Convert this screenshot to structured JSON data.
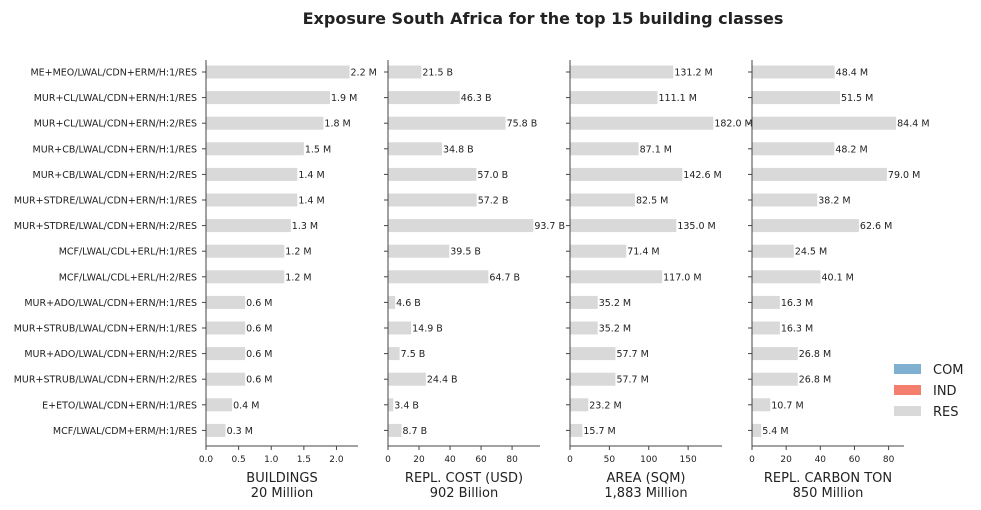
{
  "chart_data": {
    "type": "bar",
    "orientation": "horizontal",
    "title": "Exposure South Africa for the top 15 building classes",
    "categories": [
      "ME+MEO/LWAL/CDN+ERM/H:1/RES",
      "MUR+CL/LWAL/CDN+ERN/H:1/RES",
      "MUR+CL/LWAL/CDN+ERN/H:2/RES",
      "MUR+CB/LWAL/CDN+ERN/H:1/RES",
      "MUR+CB/LWAL/CDN+ERN/H:2/RES",
      "MUR+STDRE/LWAL/CDN+ERN/H:1/RES",
      "MUR+STDRE/LWAL/CDN+ERN/H:2/RES",
      "MCF/LWAL/CDL+ERL/H:1/RES",
      "MCF/LWAL/CDL+ERL/H:2/RES",
      "MUR+ADO/LWAL/CDN+ERN/H:1/RES",
      "MUR+STRUB/LWAL/CDN+ERN/H:1/RES",
      "MUR+ADO/LWAL/CDN+ERN/H:2/RES",
      "MUR+STRUB/LWAL/CDN+ERN/H:2/RES",
      "E+ETO/LWAL/CDN+ERN/H:1/RES",
      "MCF/LWAL/CDM+ERM/H:1/RES"
    ],
    "panels": [
      {
        "xlabel": "BUILDINGS",
        "subtitle": "20 Million",
        "xlim": [
          0,
          2.33
        ],
        "xticks": [
          0.0,
          0.5,
          1.0,
          1.5,
          2.0
        ],
        "xtick_labels": [
          "0.0",
          "0.5",
          "1.0",
          "1.5",
          "2.0"
        ],
        "values": [
          2.2,
          1.9,
          1.8,
          1.5,
          1.4,
          1.4,
          1.3,
          1.2,
          1.2,
          0.6,
          0.6,
          0.6,
          0.6,
          0.4,
          0.3
        ],
        "labels": [
          "2.2 M",
          "1.9 M",
          "1.8 M",
          "1.5 M",
          "1.4 M",
          "1.4 M",
          "1.3 M",
          "1.2 M",
          "1.2 M",
          "0.6 M",
          "0.6 M",
          "0.6 M",
          "0.6 M",
          "0.4 M",
          "0.3 M"
        ]
      },
      {
        "xlabel": "REPL. COST (USD)",
        "subtitle": "902 Billion",
        "xlim": [
          0,
          98
        ],
        "xticks": [
          0,
          20,
          40,
          60,
          80
        ],
        "xtick_labels": [
          "0",
          "20",
          "40",
          "60",
          "80"
        ],
        "values": [
          21.5,
          46.3,
          75.8,
          34.8,
          57.0,
          57.2,
          93.7,
          39.5,
          64.7,
          4.6,
          14.9,
          7.5,
          24.4,
          3.4,
          8.7
        ],
        "labels": [
          "21.5 B",
          "46.3 B",
          "75.8 B",
          "34.8 B",
          "57.0 B",
          "57.2 B",
          "93.7 B",
          "39.5 B",
          "64.7 B",
          "4.6 B",
          "14.9 B",
          "7.5 B",
          "24.4 B",
          "3.4 B",
          "8.7 B"
        ]
      },
      {
        "xlabel": "AREA (SQM)",
        "subtitle": "1,883 Million",
        "xlim": [
          0,
          193
        ],
        "xticks": [
          0,
          50,
          100,
          150
        ],
        "xtick_labels": [
          "0",
          "50",
          "100",
          "150"
        ],
        "values": [
          131.2,
          111.1,
          182.0,
          87.1,
          142.6,
          82.5,
          135.0,
          71.4,
          117.0,
          35.2,
          35.2,
          57.7,
          57.7,
          23.2,
          15.7
        ],
        "labels": [
          "131.2 M",
          "111.1 M",
          "182.0 M",
          "87.1 M",
          "142.6 M",
          "82.5 M",
          "135.0 M",
          "71.4 M",
          "117.0 M",
          "35.2 M",
          "35.2 M",
          "57.7 M",
          "57.7 M",
          "23.2 M",
          "15.7 M"
        ]
      },
      {
        "xlabel": "REPL. CARBON TON",
        "subtitle": "850 Million",
        "xlim": [
          0,
          89
        ],
        "xticks": [
          0,
          20,
          40,
          60,
          80
        ],
        "xtick_labels": [
          "0",
          "20",
          "40",
          "60",
          "80"
        ],
        "values": [
          48.4,
          51.5,
          84.4,
          48.2,
          79.0,
          38.2,
          62.6,
          24.5,
          40.1,
          16.3,
          16.3,
          26.8,
          26.8,
          10.7,
          5.4
        ],
        "labels": [
          "48.4 M",
          "51.5 M",
          "84.4 M",
          "48.2 M",
          "79.0 M",
          "38.2 M",
          "62.6 M",
          "24.5 M",
          "40.1 M",
          "16.3 M",
          "16.3 M",
          "26.8 M",
          "26.8 M",
          "10.7 M",
          "5.4 M"
        ]
      }
    ],
    "legend": {
      "placement": "lower-right",
      "entries": [
        {
          "name": "COM",
          "color": "#7fb0d2"
        },
        {
          "name": "IND",
          "color": "#f47f6e"
        },
        {
          "name": "RES",
          "color": "#d9d9d9"
        }
      ]
    },
    "bar_color": "#d9d9d9",
    "grid": false
  }
}
